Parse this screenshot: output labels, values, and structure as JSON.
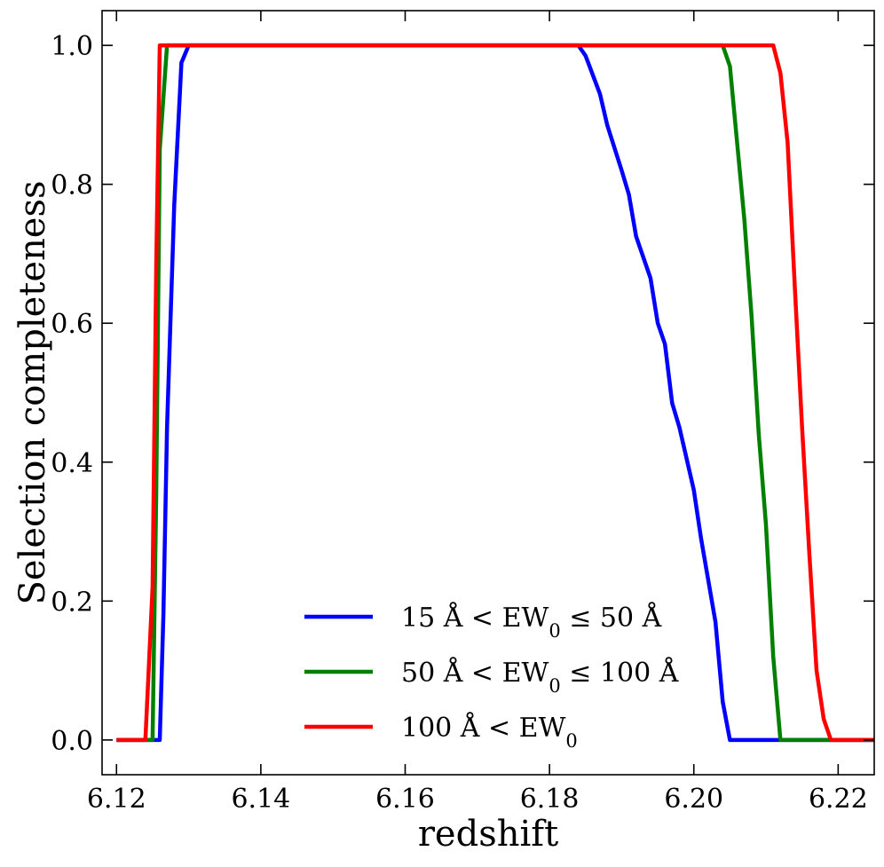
{
  "chart_data": {
    "type": "line",
    "title": "",
    "xlabel": "redshift",
    "ylabel": "Selection completeness",
    "xlim": [
      6.118,
      6.225
    ],
    "ylim": [
      -0.05,
      1.05
    ],
    "xticks": [
      6.12,
      6.14,
      6.16,
      6.18,
      6.2,
      6.22
    ],
    "xtick_labels": [
      "6.12",
      "6.14",
      "6.16",
      "6.18",
      "6.20",
      "6.22"
    ],
    "yticks": [
      0.0,
      0.2,
      0.4,
      0.6,
      0.8,
      1.0
    ],
    "ytick_labels": [
      "0.0",
      "0.2",
      "0.4",
      "0.6",
      "0.8",
      "1.0"
    ],
    "grid": false,
    "legend_position": "bottom-center",
    "series": [
      {
        "name": "blue",
        "legend_parts": [
          {
            "t": "15 Å < EW"
          },
          {
            "t": "0",
            "sub": true
          },
          {
            "t": " ≤ 50 Å"
          }
        ],
        "color": "#0000ff",
        "points": [
          [
            6.12,
            0.0
          ],
          [
            6.126,
            0.0
          ],
          [
            6.1265,
            0.18
          ],
          [
            6.127,
            0.45
          ],
          [
            6.128,
            0.77
          ],
          [
            6.129,
            0.975
          ],
          [
            6.13,
            1.0
          ],
          [
            6.184,
            1.0
          ],
          [
            6.185,
            0.985
          ],
          [
            6.187,
            0.93
          ],
          [
            6.188,
            0.885
          ],
          [
            6.19,
            0.82
          ],
          [
            6.191,
            0.785
          ],
          [
            6.192,
            0.725
          ],
          [
            6.194,
            0.665
          ],
          [
            6.195,
            0.6
          ],
          [
            6.196,
            0.57
          ],
          [
            6.197,
            0.485
          ],
          [
            6.198,
            0.45
          ],
          [
            6.2,
            0.36
          ],
          [
            6.201,
            0.29
          ],
          [
            6.203,
            0.17
          ],
          [
            6.204,
            0.055
          ],
          [
            6.205,
            0.0
          ],
          [
            6.225,
            0.0
          ]
        ]
      },
      {
        "name": "green",
        "legend_parts": [
          {
            "t": "50 Å < EW"
          },
          {
            "t": "0",
            "sub": true
          },
          {
            "t": " ≤ 100 Å"
          }
        ],
        "color": "#008000",
        "points": [
          [
            6.12,
            0.0
          ],
          [
            6.125,
            0.0
          ],
          [
            6.1255,
            0.35
          ],
          [
            6.126,
            0.85
          ],
          [
            6.127,
            1.0
          ],
          [
            6.204,
            1.0
          ],
          [
            6.205,
            0.97
          ],
          [
            6.206,
            0.86
          ],
          [
            6.207,
            0.75
          ],
          [
            6.208,
            0.61
          ],
          [
            6.209,
            0.44
          ],
          [
            6.21,
            0.31
          ],
          [
            6.211,
            0.12
          ],
          [
            6.212,
            0.0
          ],
          [
            6.225,
            0.0
          ]
        ]
      },
      {
        "name": "red",
        "legend_parts": [
          {
            "t": "100 Å < EW"
          },
          {
            "t": "0",
            "sub": true
          }
        ],
        "color": "#ff0000",
        "points": [
          [
            6.12,
            0.0
          ],
          [
            6.124,
            0.0
          ],
          [
            6.125,
            0.22
          ],
          [
            6.1255,
            0.68
          ],
          [
            6.126,
            1.0
          ],
          [
            6.211,
            1.0
          ],
          [
            6.212,
            0.96
          ],
          [
            6.213,
            0.86
          ],
          [
            6.214,
            0.65
          ],
          [
            6.215,
            0.45
          ],
          [
            6.216,
            0.27
          ],
          [
            6.217,
            0.1
          ],
          [
            6.218,
            0.03
          ],
          [
            6.219,
            0.0
          ],
          [
            6.225,
            0.0
          ]
        ]
      }
    ]
  }
}
